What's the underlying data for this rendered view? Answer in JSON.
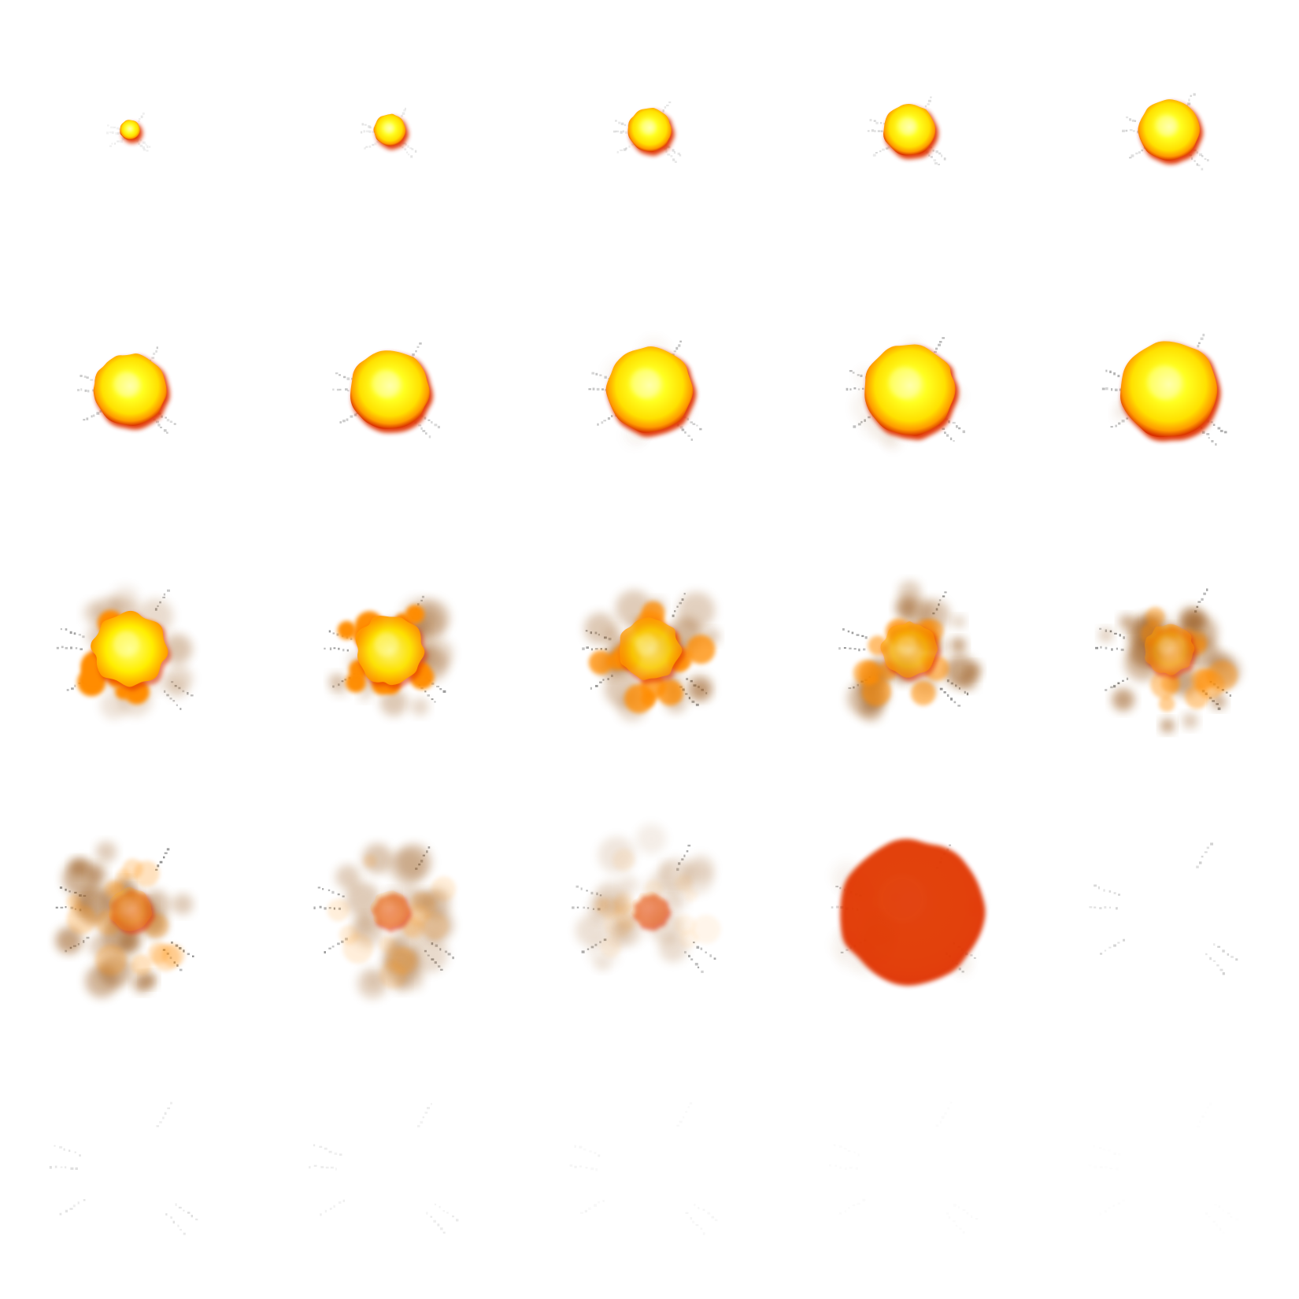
{
  "sprite_sheet": {
    "subject": "explosion",
    "columns": 5,
    "rows": 5,
    "frame_count": 25,
    "background": "#ffffff",
    "palette": {
      "core": "#ffffa8",
      "fire": "#ffff00",
      "flame": "#ff8c00",
      "rim": "#e03000",
      "smoke": "#9a5a1e",
      "debris": "#8a8a8a"
    },
    "frames": [
      {
        "index": 1,
        "phase": "ignition",
        "size": 0.14,
        "fire": 1.0,
        "smoke": 0.0,
        "debris": 0.2
      },
      {
        "index": 2,
        "phase": "ignition",
        "size": 0.22,
        "fire": 1.0,
        "smoke": 0.0,
        "debris": 0.25
      },
      {
        "index": 3,
        "phase": "ignition",
        "size": 0.3,
        "fire": 1.0,
        "smoke": 0.0,
        "debris": 0.3
      },
      {
        "index": 4,
        "phase": "ignition",
        "size": 0.36,
        "fire": 1.0,
        "smoke": 0.0,
        "debris": 0.35
      },
      {
        "index": 5,
        "phase": "ignition",
        "size": 0.42,
        "fire": 1.0,
        "smoke": 0.0,
        "debris": 0.4
      },
      {
        "index": 6,
        "phase": "fireball",
        "size": 0.5,
        "fire": 1.0,
        "smoke": 0.0,
        "debris": 0.5
      },
      {
        "index": 7,
        "phase": "fireball",
        "size": 0.55,
        "fire": 1.0,
        "smoke": 0.0,
        "debris": 0.55
      },
      {
        "index": 8,
        "phase": "fireball",
        "size": 0.59,
        "fire": 1.0,
        "smoke": 0.05,
        "debris": 0.6
      },
      {
        "index": 9,
        "phase": "fireball",
        "size": 0.63,
        "fire": 0.95,
        "smoke": 0.1,
        "debris": 0.65
      },
      {
        "index": 10,
        "phase": "fireball",
        "size": 0.67,
        "fire": 0.9,
        "smoke": 0.15,
        "debris": 0.7
      },
      {
        "index": 11,
        "phase": "burst",
        "size": 0.74,
        "fire": 0.85,
        "smoke": 0.3,
        "debris": 0.8
      },
      {
        "index": 12,
        "phase": "burst",
        "size": 0.78,
        "fire": 0.7,
        "smoke": 0.45,
        "debris": 0.85
      },
      {
        "index": 13,
        "phase": "burst",
        "size": 0.82,
        "fire": 0.55,
        "smoke": 0.6,
        "debris": 0.9
      },
      {
        "index": 14,
        "phase": "burst",
        "size": 0.86,
        "fire": 0.4,
        "smoke": 0.7,
        "debris": 0.95
      },
      {
        "index": 15,
        "phase": "burst",
        "size": 0.9,
        "fire": 0.3,
        "smoke": 0.75,
        "debris": 1.0
      },
      {
        "index": 16,
        "phase": "dissipate",
        "size": 0.92,
        "fire": 0.18,
        "smoke": 0.7,
        "debris": 1.0
      },
      {
        "index": 17,
        "phase": "dissipate",
        "size": 0.94,
        "fire": 0.1,
        "smoke": 0.45,
        "debris": 0.9
      },
      {
        "index": 18,
        "phase": "dissipate",
        "size": 0.96,
        "fire": 0.06,
        "smoke": 0.25,
        "debris": 0.75
      },
      {
        "index": 19,
        "phase": "dissipate",
        "size": 0.98,
        "fire": 0.02,
        "smoke": 0.1,
        "debris": 0.55
      },
      {
        "index": 20,
        "phase": "dissipate",
        "size": 1.0,
        "fire": 0.0,
        "smoke": 0.0,
        "debris": 0.4
      },
      {
        "index": 21,
        "phase": "fade",
        "size": 1.0,
        "fire": 0.0,
        "smoke": 0.0,
        "debris": 0.28
      },
      {
        "index": 22,
        "phase": "fade",
        "size": 1.0,
        "fire": 0.0,
        "smoke": 0.0,
        "debris": 0.18
      },
      {
        "index": 23,
        "phase": "fade",
        "size": 1.0,
        "fire": 0.0,
        "smoke": 0.0,
        "debris": 0.1
      },
      {
        "index": 24,
        "phase": "fade",
        "size": 1.0,
        "fire": 0.0,
        "smoke": 0.0,
        "debris": 0.05
      },
      {
        "index": 25,
        "phase": "fade",
        "size": 1.0,
        "fire": 0.0,
        "smoke": 0.0,
        "debris": 0.03
      }
    ]
  }
}
